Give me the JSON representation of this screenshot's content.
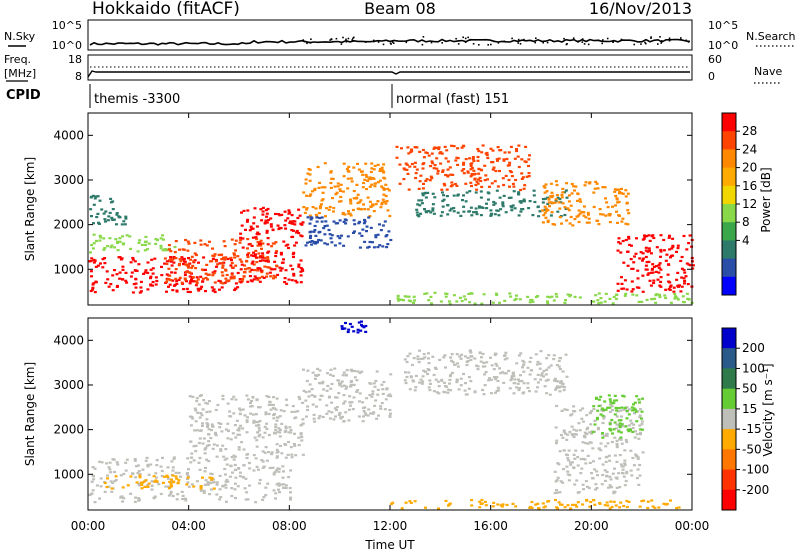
{
  "header": {
    "station": "Hokkaido (fitACF)",
    "beam": "Beam 08",
    "date": "16/Nov/2013"
  },
  "top_panels": {
    "nsky": {
      "label": "N.Sky",
      "right_label": "N.Search",
      "left_ticks": [
        "10^5",
        "10^0"
      ],
      "right_ticks": [
        "10^5",
        "10^0"
      ]
    },
    "freq": {
      "label_line1": "Freq.",
      "label_line2": "[MHz]",
      "right_label": "Nave",
      "left_ticks": [
        "18",
        "8"
      ],
      "right_ticks": [
        "60",
        "0"
      ]
    },
    "cpid": {
      "label": "CPID",
      "modes": [
        {
          "time_h": 0.0,
          "text": "themis -3300"
        },
        {
          "time_h": 12.0,
          "text": "normal (fast) 151"
        }
      ]
    }
  },
  "chart_data": [
    {
      "type": "heatmap",
      "name": "power",
      "ylabel": "Slant Range [km]",
      "xlim_hours": [
        0,
        24
      ],
      "ylim_km": [
        200,
        4500
      ],
      "yticks": [
        1000,
        2000,
        3000,
        4000
      ],
      "colorbar": {
        "label": "Power [dB]",
        "ticks": [
          "28",
          "24",
          "20",
          "16",
          "12",
          "8",
          "4"
        ],
        "colors": [
          "#ff0000",
          "#ff4400",
          "#ff8800",
          "#ffaa00",
          "#f2d600",
          "#88d84a",
          "#3aa84a",
          "#2e7a6a",
          "#2a4ea8",
          "#0000ff"
        ]
      },
      "scatter_regions": [
        {
          "t": [
            0.0,
            1.5
          ],
          "r": [
            2000,
            2700
          ],
          "c": "#2e7a6a"
        },
        {
          "t": [
            0.0,
            3.5
          ],
          "r": [
            1400,
            1800
          ],
          "c": "#88d84a"
        },
        {
          "t": [
            0.0,
            6.0
          ],
          "r": [
            500,
            1300
          ],
          "c": "#ff0000"
        },
        {
          "t": [
            3.0,
            7.5
          ],
          "r": [
            700,
            1700
          ],
          "c": "#ff4400"
        },
        {
          "t": [
            6.0,
            8.5
          ],
          "r": [
            700,
            2400
          ],
          "c": "#ff0000"
        },
        {
          "t": [
            8.5,
            12.0
          ],
          "r": [
            2200,
            3400
          ],
          "c": "#ff8800"
        },
        {
          "t": [
            8.5,
            12.0
          ],
          "r": [
            1500,
            2200
          ],
          "c": "#2a4ea8"
        },
        {
          "t": [
            12.2,
            17.5
          ],
          "r": [
            2800,
            3800
          ],
          "c": "#ff4400"
        },
        {
          "t": [
            13.0,
            19.0
          ],
          "r": [
            2200,
            2800
          ],
          "c": "#2e7a6a"
        },
        {
          "t": [
            18.0,
            21.5
          ],
          "r": [
            2000,
            3000
          ],
          "c": "#ff8800"
        },
        {
          "t": [
            21.0,
            24.0
          ],
          "r": [
            500,
            1800
          ],
          "c": "#ff0000"
        },
        {
          "t": [
            12.0,
            24.0
          ],
          "r": [
            250,
            500
          ],
          "c": "#88d84a"
        }
      ]
    },
    {
      "type": "heatmap",
      "name": "velocity",
      "ylabel": "Slant Range [km]",
      "xlabel": "Time UT",
      "xlim_hours": [
        0,
        24
      ],
      "ylim_km": [
        200,
        4500
      ],
      "yticks": [
        1000,
        2000,
        3000,
        4000
      ],
      "xticks": [
        "00:00",
        "04:00",
        "08:00",
        "12:00",
        "16:00",
        "20:00",
        "00:00"
      ],
      "colorbar": {
        "label": "Velocity [m s⁻¹]",
        "ticks": [
          "200",
          "100",
          "50",
          "15",
          "-15",
          "-50",
          "-100",
          "-200"
        ],
        "colors": [
          "#0000cc",
          "#2a5a8a",
          "#2e7a4a",
          "#66cc33",
          "#bfbfba",
          "#ffaa00",
          "#ff7700",
          "#ff3300",
          "#ff0000"
        ]
      },
      "scatter_regions": [
        {
          "t": [
            0.0,
            8.0
          ],
          "r": [
            400,
            1400
          ],
          "c": "#bfbfba"
        },
        {
          "t": [
            0.5,
            5.0
          ],
          "r": [
            700,
            1000
          ],
          "c": "#ffaa00"
        },
        {
          "t": [
            4.0,
            8.5
          ],
          "r": [
            1400,
            2800
          ],
          "c": "#bfbfba"
        },
        {
          "t": [
            8.5,
            12.0
          ],
          "r": [
            2200,
            3400
          ],
          "c": "#bfbfba"
        },
        {
          "t": [
            12.5,
            19.0
          ],
          "r": [
            2800,
            3800
          ],
          "c": "#bfbfba"
        },
        {
          "t": [
            18.5,
            22.0
          ],
          "r": [
            600,
            2600
          ],
          "c": "#bfbfba"
        },
        {
          "t": [
            20.0,
            22.0
          ],
          "r": [
            1800,
            2800
          ],
          "c": "#66cc33"
        },
        {
          "t": [
            12.0,
            24.0
          ],
          "r": [
            250,
            450
          ],
          "c": "#ffaa00"
        },
        {
          "t": [
            10.0,
            11.0
          ],
          "r": [
            4200,
            4450
          ],
          "c": "#0000cc"
        }
      ]
    }
  ]
}
